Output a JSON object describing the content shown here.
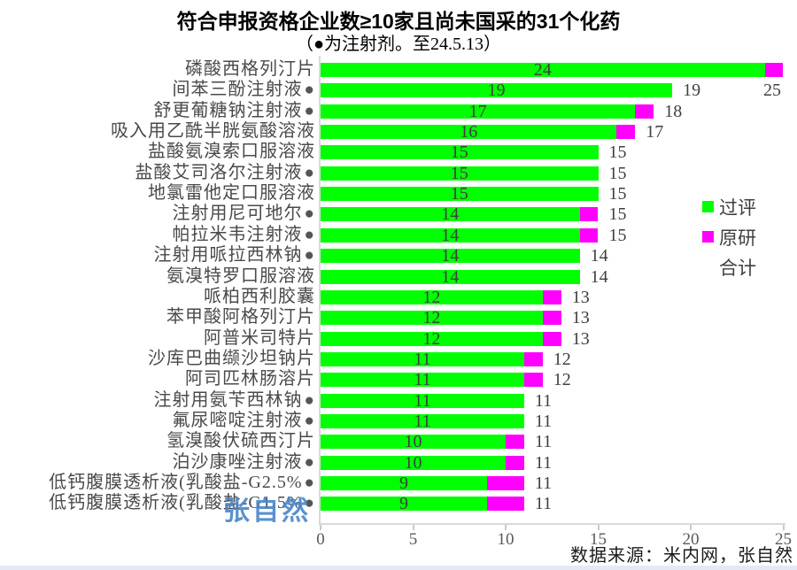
{
  "title": "符合申报资格企业数≥10家且尚未国采的31个化药",
  "subtitle": "（●为注射剂。至24.5.13）",
  "source": "数据来源：米内网，张自然",
  "watermark": "张自然",
  "legend": {
    "pass_label": "过评",
    "orig_label": "原研",
    "total_label": "合计"
  },
  "colors": {
    "pass": "#00ff00",
    "orig": "#ff00ff",
    "axis": "#d9d9d9",
    "tick_text": "#595959",
    "label_text": "#4a4a4a",
    "value_text": "#3f3f3f",
    "watermark": "#4a86c8",
    "injection_dot": "#555555"
  },
  "chart_data": {
    "type": "bar",
    "orientation": "horizontal",
    "stacked": true,
    "xlim": [
      0,
      25
    ],
    "xticks": [
      0,
      5,
      10,
      15,
      20,
      25
    ],
    "series_names": [
      "过评",
      "原研"
    ],
    "value_label_note": "green value shown inside bar, total shown outside end",
    "rows": [
      {
        "label": "磷酸西格列汀片",
        "injection": false,
        "pass": 24,
        "orig": 1,
        "total": 25,
        "total_label_pos": {
          "x": 862,
          "y": 91
        }
      },
      {
        "label": "间苯三酚注射液",
        "injection": true,
        "pass": 19,
        "orig": 0,
        "total": 19
      },
      {
        "label": "舒更葡糖钠注射液",
        "injection": true,
        "pass": 17,
        "orig": 1,
        "total": 18
      },
      {
        "label": "吸入用乙酰半胱氨酸溶液",
        "injection": false,
        "pass": 16,
        "orig": 1,
        "total": 17
      },
      {
        "label": "盐酸氨溴索口服溶液",
        "injection": false,
        "pass": 15,
        "orig": 0,
        "total": 15
      },
      {
        "label": "盐酸艾司洛尔注射液",
        "injection": true,
        "pass": 15,
        "orig": 0,
        "total": 15
      },
      {
        "label": "地氯雷他定口服溶液",
        "injection": false,
        "pass": 15,
        "orig": 0,
        "total": 15
      },
      {
        "label": "注射用尼可地尔",
        "injection": true,
        "pass": 14,
        "orig": 1,
        "total": 15
      },
      {
        "label": "帕拉米韦注射液",
        "injection": true,
        "pass": 14,
        "orig": 1,
        "total": 15
      },
      {
        "label": "注射用哌拉西林钠",
        "injection": true,
        "pass": 14,
        "orig": 0,
        "total": 14
      },
      {
        "label": "氨溴特罗口服溶液",
        "injection": false,
        "pass": 14,
        "orig": 0,
        "total": 14
      },
      {
        "label": "哌柏西利胶囊",
        "injection": false,
        "pass": 12,
        "orig": 1,
        "total": 13
      },
      {
        "label": "苯甲酸阿格列汀片",
        "injection": false,
        "pass": 12,
        "orig": 1,
        "total": 13
      },
      {
        "label": "阿普米司特片",
        "injection": false,
        "pass": 12,
        "orig": 1,
        "total": 13
      },
      {
        "label": "沙库巴曲缬沙坦钠片",
        "injection": false,
        "pass": 11,
        "orig": 1,
        "total": 12
      },
      {
        "label": "阿司匹林肠溶片",
        "injection": false,
        "pass": 11,
        "orig": 1,
        "total": 12
      },
      {
        "label": "注射用氨苄西林钠",
        "injection": true,
        "pass": 11,
        "orig": 0,
        "total": 11
      },
      {
        "label": "氟尿嘧啶注射液",
        "injection": true,
        "pass": 11,
        "orig": 0,
        "total": 11
      },
      {
        "label": "氢溴酸伏硫西汀片",
        "injection": false,
        "pass": 10,
        "orig": 1,
        "total": 11
      },
      {
        "label": "泊沙康唑注射液",
        "injection": true,
        "pass": 10,
        "orig": 1,
        "total": 11
      },
      {
        "label": "低钙腹膜透析液(乳酸盐-G2.5%",
        "injection": true,
        "pass": 9,
        "orig": 2,
        "total": 11
      },
      {
        "label": "低钙腹膜透析液(乳酸盐-G1.5%",
        "injection": true,
        "pass": 9,
        "orig": 2,
        "total": 11
      }
    ]
  }
}
